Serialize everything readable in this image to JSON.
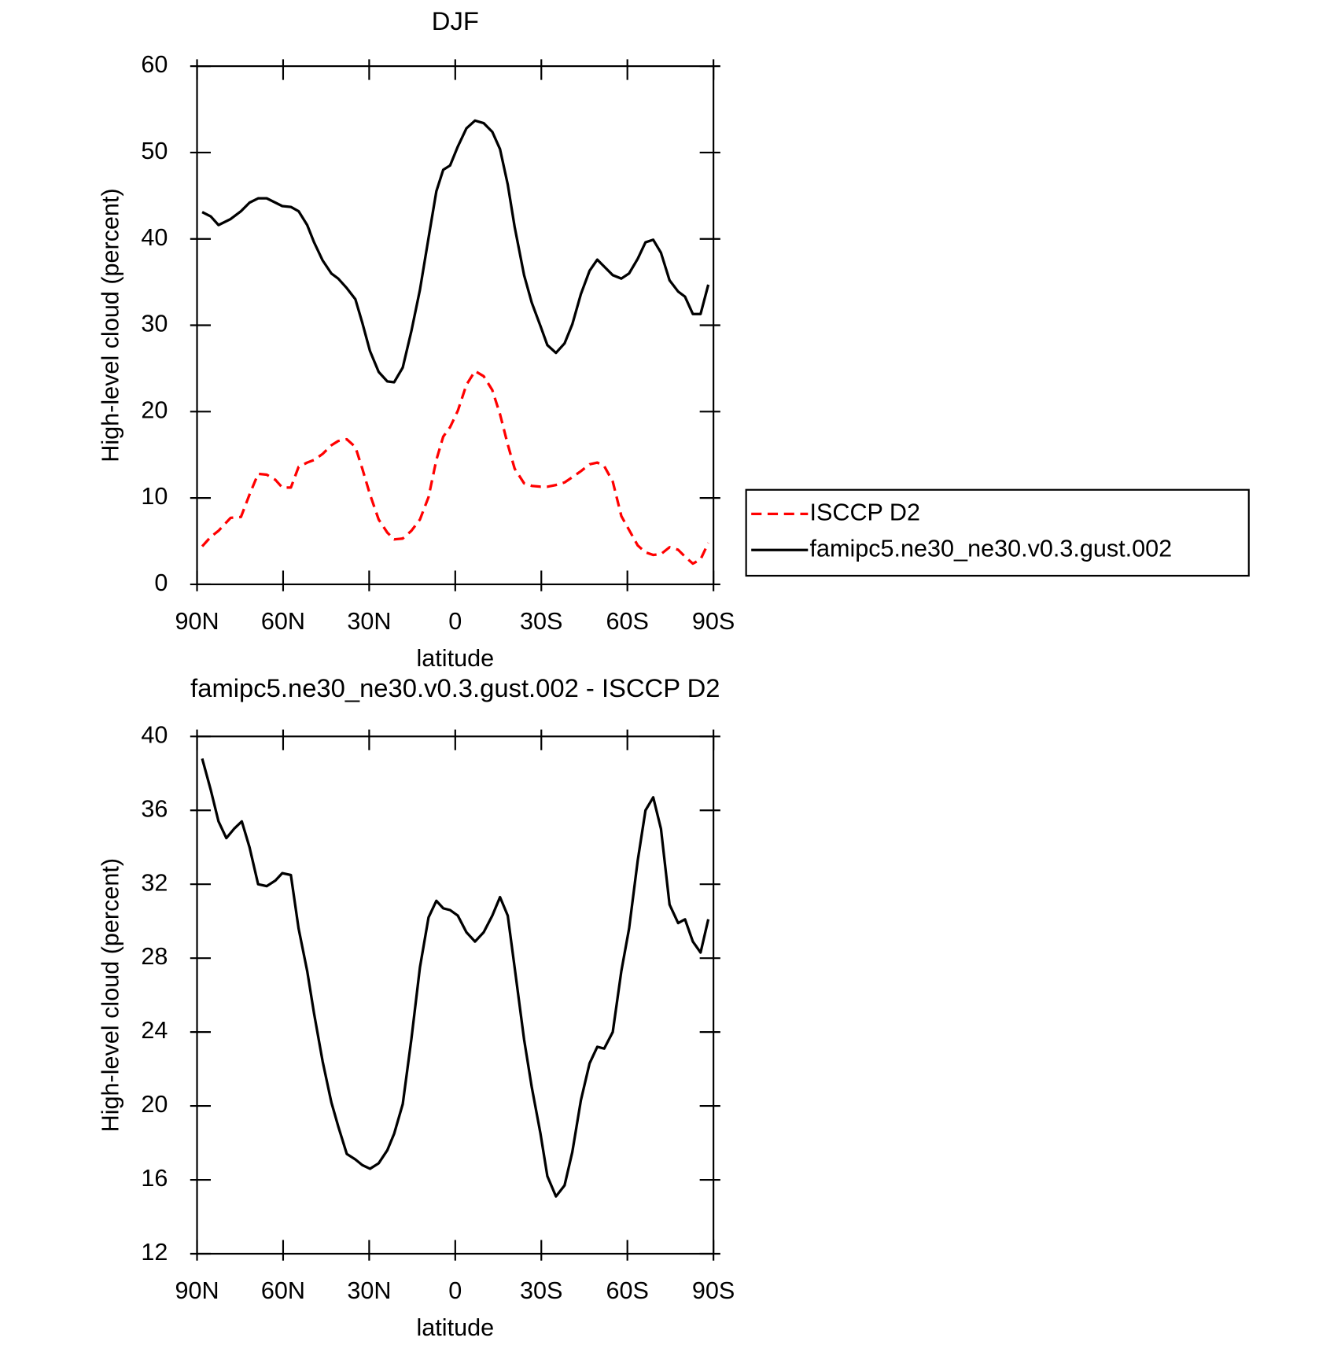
{
  "chart_data": [
    {
      "type": "line",
      "title": "DJF",
      "ylabel": "High-level cloud (percent)",
      "xlabel": "latitude",
      "x": [
        88.2,
        85.2,
        82.5,
        78.3,
        74.7,
        71.7,
        68.7,
        65.7,
        62.7,
        60.3,
        57.3,
        54.6,
        51.6,
        49.2,
        46.2,
        43.2,
        40.8,
        37.8,
        34.8,
        32.4,
        29.7,
        26.7,
        23.7,
        21.3,
        18.3,
        15.3,
        12.3,
        9.3,
        6.6,
        4.2,
        1.8,
        -0.9,
        -3.9,
        -6.9,
        -9.9,
        -12.9,
        -15.6,
        -18.3,
        -20.7,
        -24,
        -26.7,
        -29.7,
        -32.1,
        -35.1,
        -38.1,
        -40.8,
        -43.8,
        -46.8,
        -49.5,
        -51.9,
        -54.9,
        -57.9,
        -60.6,
        -63.6,
        -66.3,
        -69,
        -71.7,
        -74.7,
        -77.7,
        -80.1,
        -82.8,
        -85.5,
        -88.2
      ],
      "series": [
        {
          "name": "ISCCP D2",
          "color": "#ff0000",
          "dash": true,
          "values": [
            4.4,
            5.5,
            6.2,
            7.7,
            7.8,
            10.4,
            12.8,
            12.7,
            12.1,
            11.2,
            11.2,
            13.6,
            14.1,
            14.4,
            15.1,
            16.1,
            16.6,
            16.8,
            15.9,
            13.4,
            10.4,
            7.5,
            6.0,
            5.2,
            5.3,
            6.2,
            7.5,
            10.1,
            14.4,
            17.1,
            18.2,
            20.1,
            23.1,
            24.7,
            24.1,
            22.5,
            19.7,
            16.2,
            13.4,
            11.7,
            11.4,
            11.3,
            11.3,
            11.5,
            11.8,
            12.4,
            13.1,
            13.9,
            14.1,
            13.7,
            11.9,
            7.9,
            6.3,
            4.5,
            3.7,
            3.4,
            3.5,
            4.3,
            4.0,
            3.2,
            2.4,
            2.9,
            4.8
          ]
        },
        {
          "name": "famipc5.ne30_ne30.v0.3.gust.002",
          "color": "#000000",
          "dash": false,
          "values": [
            43.1,
            42.6,
            41.6,
            42.3,
            43.2,
            44.2,
            44.7,
            44.7,
            44.2,
            43.8,
            43.7,
            43.2,
            41.6,
            39.6,
            37.5,
            36.0,
            35.4,
            34.3,
            33.0,
            30.3,
            27.0,
            24.6,
            23.5,
            23.4,
            25.1,
            29.3,
            34.1,
            40.1,
            45.5,
            48.0,
            48.5,
            50.7,
            52.8,
            53.7,
            53.4,
            52.4,
            50.4,
            46.3,
            41.4,
            35.8,
            32.6,
            29.9,
            27.7,
            26.8,
            27.9,
            30.1,
            33.6,
            36.3,
            37.6,
            36.8,
            35.8,
            35.4,
            36.0,
            37.7,
            39.6,
            39.9,
            38.4,
            35.2,
            33.9,
            33.3,
            31.3,
            31.3,
            34.7
          ]
        }
      ],
      "xlim": [
        90,
        -90
      ],
      "xticks": [
        {
          "value": 90,
          "label": "90N"
        },
        {
          "value": 60,
          "label": "60N"
        },
        {
          "value": 30,
          "label": "30N"
        },
        0,
        {
          "value": -30,
          "label": "30S"
        },
        {
          "value": -60,
          "label": "60S"
        },
        {
          "value": -90,
          "label": "90S"
        }
      ],
      "ylim": [
        0,
        60
      ],
      "yticks": [
        0,
        10,
        20,
        30,
        40,
        50,
        60
      ],
      "legend": "right"
    },
    {
      "type": "line",
      "title": "famipc5.ne30_ne30.v0.3.gust.002 - ISCCP D2",
      "ylabel": "High-level cloud (percent)",
      "xlabel": "latitude",
      "x": [
        88.2,
        85.2,
        82.5,
        79.8,
        77.1,
        74.4,
        71.7,
        68.7,
        65.7,
        62.7,
        60.3,
        57.3,
        54.6,
        51.6,
        49.2,
        46.2,
        43.2,
        40.8,
        37.8,
        34.8,
        32.4,
        29.7,
        26.7,
        23.7,
        21.3,
        18.3,
        15.3,
        12.3,
        9.3,
        6.6,
        4.2,
        1.8,
        -0.9,
        -3.9,
        -6.9,
        -9.9,
        -12.9,
        -15.6,
        -18.3,
        -20.7,
        -24,
        -26.7,
        -29.7,
        -32.1,
        -35.1,
        -38.1,
        -40.8,
        -43.8,
        -46.8,
        -49.5,
        -51.9,
        -54.9,
        -57.9,
        -60.6,
        -63.6,
        -66.3,
        -69,
        -71.7,
        -74.7,
        -77.7,
        -80.1,
        -82.8,
        -85.5,
        -88.2
      ],
      "values": [
        38.8,
        37.1,
        35.4,
        34.5,
        35.0,
        35.4,
        34.0,
        32.0,
        31.9,
        32.2,
        32.6,
        32.5,
        29.6,
        27.3,
        25.0,
        22.4,
        20.2,
        18.9,
        17.4,
        17.1,
        16.8,
        16.6,
        16.9,
        17.6,
        18.5,
        20.1,
        23.6,
        27.5,
        30.2,
        31.1,
        30.7,
        30.6,
        30.3,
        29.4,
        28.9,
        29.4,
        30.3,
        31.3,
        30.3,
        27.5,
        23.6,
        21.0,
        18.5,
        16.2,
        15.1,
        15.7,
        17.5,
        20.3,
        22.3,
        23.2,
        23.1,
        24.0,
        27.3,
        29.6,
        33.3,
        36.0,
        36.7,
        35.0,
        30.9,
        29.9,
        30.1,
        28.9,
        28.3,
        30.1
      ],
      "color": "#000000",
      "xlim": [
        90,
        -90
      ],
      "xticks": [
        {
          "value": 90,
          "label": "90N"
        },
        {
          "value": 60,
          "label": "60N"
        },
        {
          "value": 30,
          "label": "30N"
        },
        0,
        {
          "value": -30,
          "label": "30S"
        },
        {
          "value": -60,
          "label": "60S"
        },
        {
          "value": -90,
          "label": "90S"
        }
      ],
      "ylim": [
        12,
        40
      ],
      "yticks": [
        12,
        16,
        20,
        24,
        28,
        32,
        36,
        40
      ]
    }
  ]
}
